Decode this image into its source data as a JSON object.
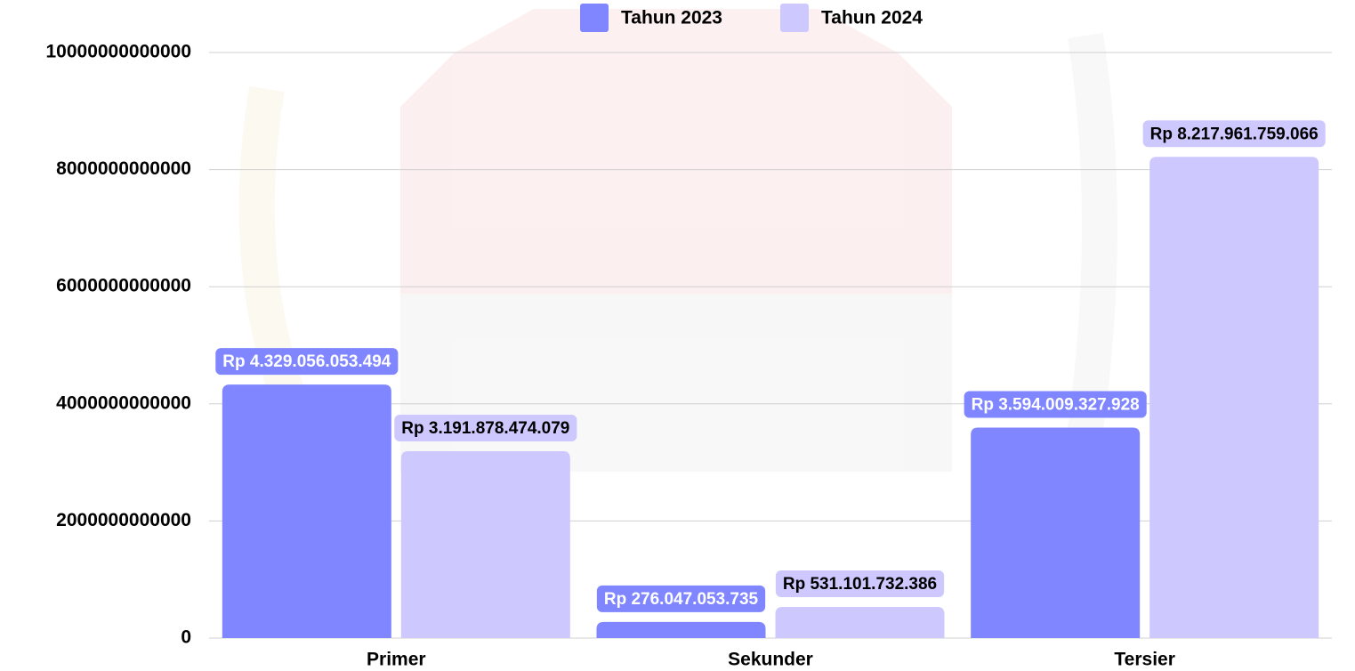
{
  "chart_data": {
    "type": "bar",
    "categories": [
      "Primer",
      "Sekunder",
      "Tersier"
    ],
    "series": [
      {
        "name": "Tahun 2023",
        "color": "#7f86ff",
        "values": [
          4329056053494,
          276047053735,
          3594009327928
        ],
        "value_labels": [
          "Rp 4.329.056.053.494",
          "Rp 276.047.053.735",
          "Rp 3.594.009.327.928"
        ]
      },
      {
        "name": "Tahun 2024",
        "color": "#cdc8fd",
        "values": [
          3191878474079,
          531101732386,
          8217961759066
        ],
        "value_labels": [
          "Rp 3.191.878.474.079",
          "Rp 531.101.732.386",
          "Rp 8.217.961.759.066"
        ]
      }
    ],
    "ylim": [
      0,
      10000000000000
    ],
    "yticks": [
      0,
      2000000000000,
      4000000000000,
      6000000000000,
      8000000000000,
      10000000000000
    ],
    "grid": true,
    "legend": "top"
  }
}
